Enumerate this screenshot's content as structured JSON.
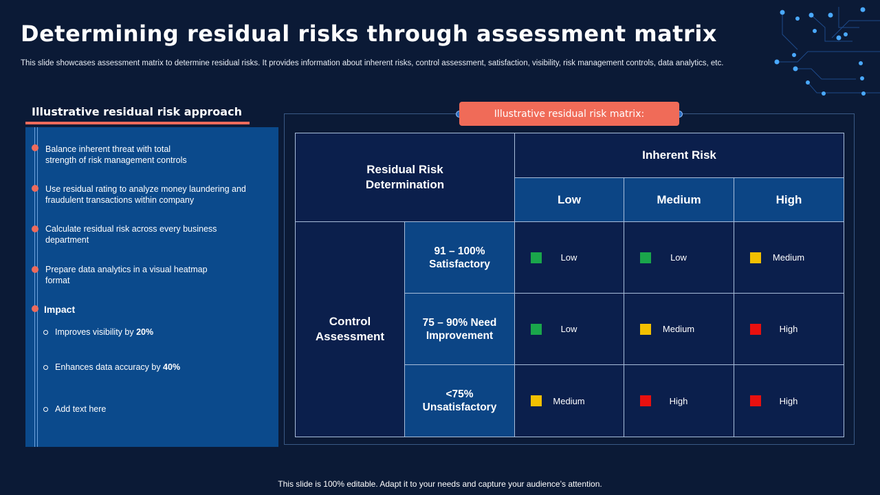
{
  "title": "Determining residual risks through assessment matrix",
  "subtitle": "This slide showcases assessment matrix to determine residual risks. It provides information about inherent risks, control assessment, satisfaction, visibility, risk management controls, data analytics, etc.",
  "left": {
    "title": "Illustrative residual risk approach",
    "bullets": [
      "Balance inherent threat with total strength of risk management controls",
      "Use residual rating to analyze money laundering and fraudulent transactions within company",
      "Calculate residual risk across every business department",
      "Prepare data analytics in a visual heatmap format"
    ],
    "impact": {
      "title": "Impact",
      "items": [
        {
          "text": "Improves visibility by ",
          "bold": "20%"
        },
        {
          "text": "Enhances data accuracy by ",
          "bold": "40%"
        },
        {
          "text": "Add text here",
          "bold": ""
        }
      ]
    }
  },
  "matrix": {
    "label": "Illustrative residual risk matrix:",
    "corner": "Residual Risk Determination",
    "inherent_header": "Inherent Risk",
    "columns": [
      "Low",
      "Medium",
      "High"
    ],
    "row_group": "Control Assessment",
    "rows": [
      {
        "label": "91 – 100% Satisfactory",
        "cells": [
          {
            "text": "Low",
            "color": "#1aa64b"
          },
          {
            "text": "Low",
            "color": "#1aa64b"
          },
          {
            "text": "Medium",
            "color": "#f3c000"
          }
        ]
      },
      {
        "label": "75 – 90% Need Improvement",
        "cells": [
          {
            "text": "Low",
            "color": "#1aa64b"
          },
          {
            "text": "Medium",
            "color": "#f3c000"
          },
          {
            "text": "High",
            "color": "#e8100f"
          }
        ]
      },
      {
        "label": "<75% Unsatisfactory",
        "cells": [
          {
            "text": "Medium",
            "color": "#f3c000"
          },
          {
            "text": "High",
            "color": "#e8100f"
          },
          {
            "text": "High",
            "color": "#e8100f"
          }
        ]
      }
    ]
  },
  "footer": "This slide is 100% editable. Adapt it to your needs and capture your audience’s attention.",
  "colors": {
    "accent": "#f06b58",
    "background": "#0b1a36",
    "panel": "#0b4a8c"
  }
}
